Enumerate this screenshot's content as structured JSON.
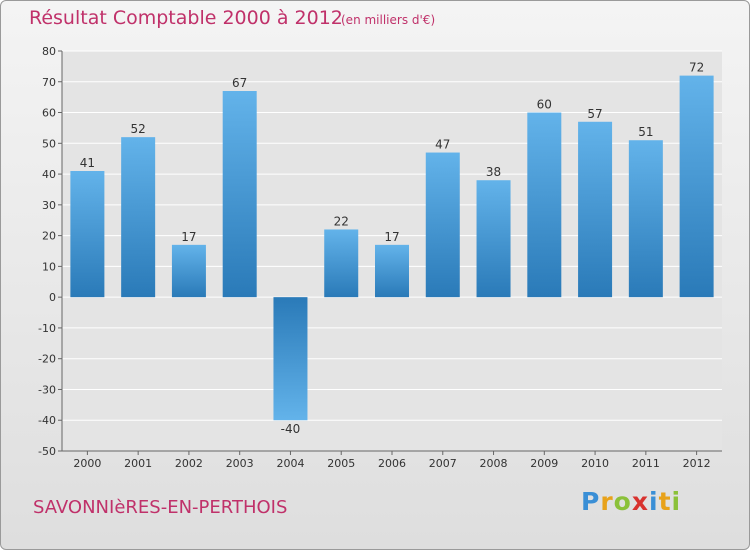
{
  "header": {
    "title": "Résultat Comptable 2000 à 2012",
    "subtitle": "(en milliers d'€)"
  },
  "footer": {
    "town": "SAVONNIèRES-EN-PERTHOIS",
    "logo_letters": [
      "P",
      "r",
      "o",
      "x",
      "i",
      "t",
      "i"
    ],
    "logo_colors": [
      "#3a8fd6",
      "#e8a21a",
      "#8bc13a",
      "#d8322e",
      "#3a8fd6",
      "#e8a21a",
      "#8bc13a"
    ]
  },
  "colors": {
    "title": "#c0316a",
    "bar_top": "#63b3ea",
    "bar_bottom": "#2a7ab8"
  },
  "chart_data": {
    "type": "bar",
    "title": "Résultat Comptable 2000 à 2012",
    "subtitle": "(en milliers d'€)",
    "xlabel": "",
    "ylabel": "",
    "categories": [
      "2000",
      "2001",
      "2002",
      "2003",
      "2004",
      "2005",
      "2006",
      "2007",
      "2008",
      "2009",
      "2010",
      "2011",
      "2012"
    ],
    "values": [
      41,
      52,
      17,
      67,
      -40,
      22,
      17,
      47,
      38,
      60,
      57,
      51,
      72
    ],
    "value_labels": [
      "41",
      "52",
      "17",
      "67",
      "-40",
      "22",
      "17",
      "47",
      "38",
      "60",
      "57",
      "51",
      "72"
    ],
    "ylim": [
      -50,
      80
    ],
    "yticks": [
      80,
      70,
      60,
      50,
      40,
      30,
      20,
      10,
      0,
      -10,
      -20,
      -30,
      -40,
      -50
    ],
    "ytick_labels": [
      "80",
      "70",
      "60",
      "50",
      "40",
      "30",
      "20",
      "10",
      "0",
      "-10",
      "-20",
      "-30",
      "-40",
      "-50"
    ],
    "grid": true
  }
}
